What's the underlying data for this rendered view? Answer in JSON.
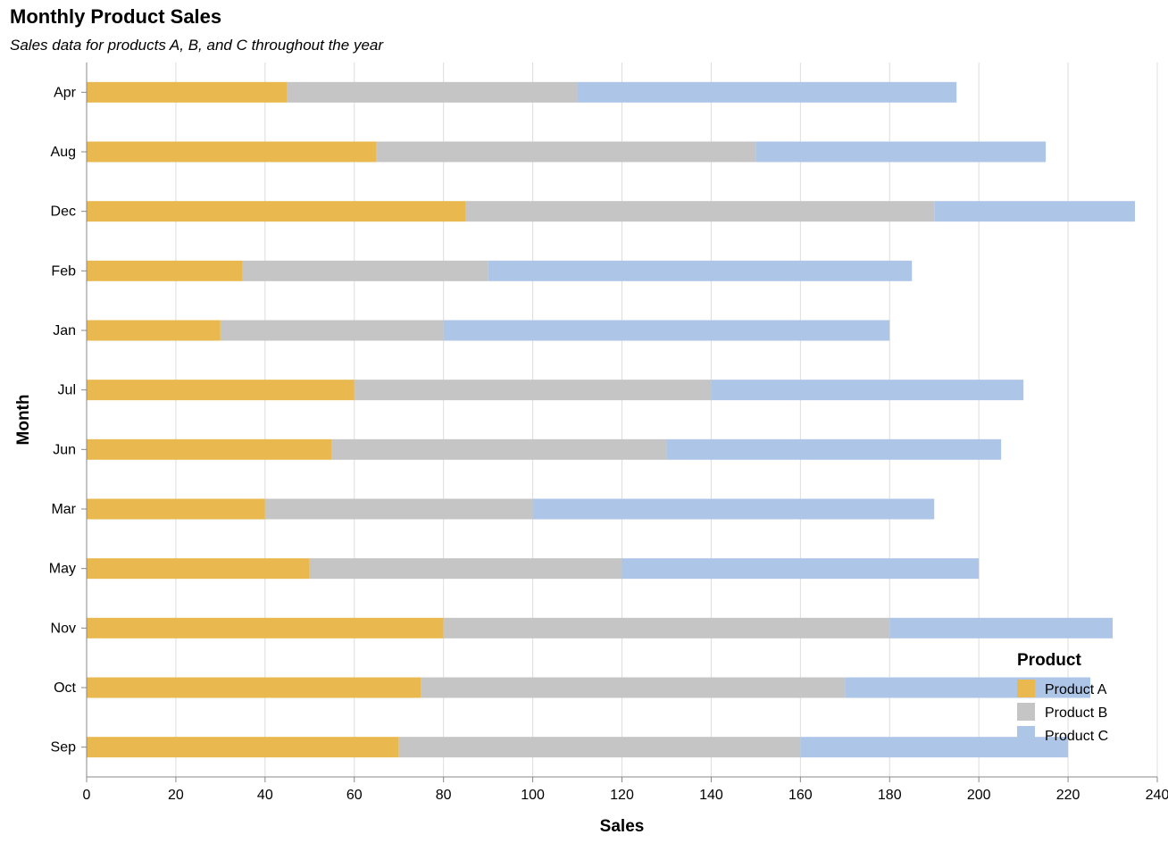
{
  "chart_data": {
    "type": "bar",
    "orientation": "horizontal",
    "stacked": true,
    "title": "Monthly Product Sales",
    "subtitle": "Sales data for products A, B, and C throughout the year",
    "xlabel": "Sales",
    "ylabel": "Month",
    "xlim": [
      0,
      240
    ],
    "x_ticks": [
      "0",
      "20",
      "40",
      "60",
      "80",
      "100",
      "120",
      "140",
      "160",
      "180",
      "200",
      "220",
      "240"
    ],
    "grid": true,
    "legend": {
      "title": "Product",
      "placement": "bottom-right"
    },
    "categories": [
      "Apr",
      "Aug",
      "Dec",
      "Feb",
      "Jan",
      "Jul",
      "Jun",
      "Mar",
      "May",
      "Nov",
      "Oct",
      "Sep"
    ],
    "series": [
      {
        "name": "Product A",
        "color": "#e9b94f",
        "values": [
          45,
          65,
          85,
          35,
          30,
          60,
          55,
          40,
          50,
          80,
          75,
          70
        ]
      },
      {
        "name": "Product B",
        "color": "#c5c5c5",
        "values": [
          65,
          85,
          105,
          55,
          50,
          80,
          75,
          60,
          70,
          100,
          95,
          90
        ]
      },
      {
        "name": "Product C",
        "color": "#adc6e8",
        "values": [
          85,
          65,
          45,
          95,
          100,
          70,
          75,
          90,
          80,
          50,
          55,
          60
        ]
      }
    ]
  }
}
